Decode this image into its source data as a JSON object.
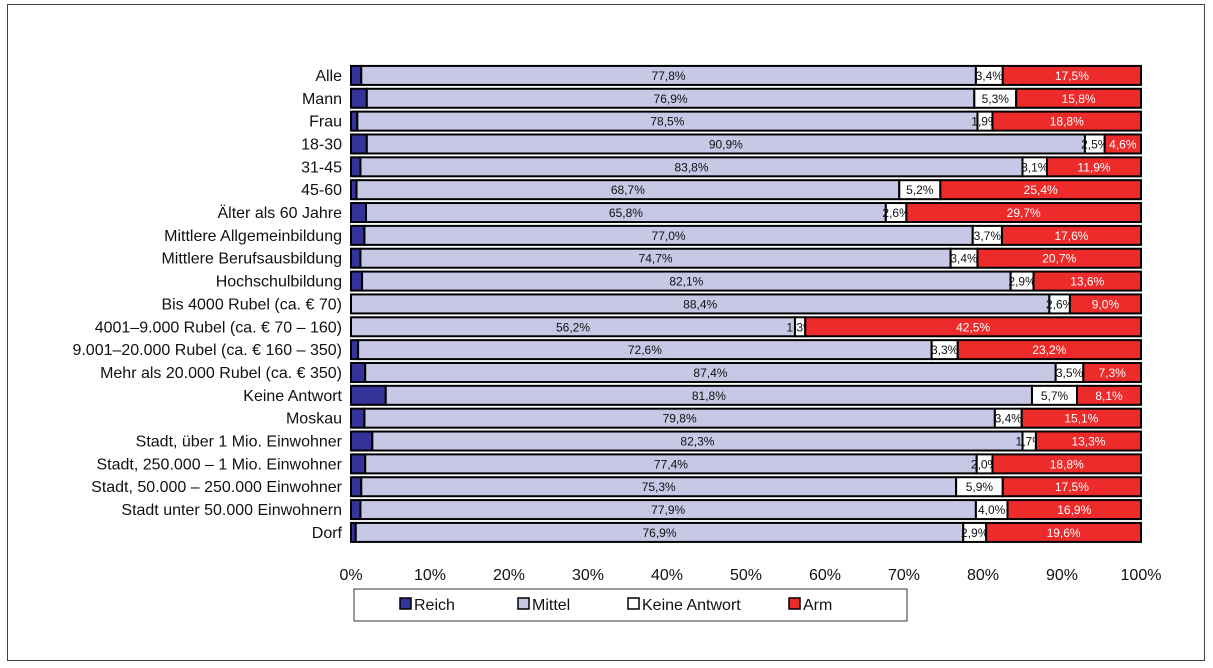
{
  "chart_data": {
    "type": "bar",
    "orientation": "horizontal",
    "stacked": true,
    "percent": true,
    "xlim": [
      0,
      100
    ],
    "x_ticks": [
      "0%",
      "10%",
      "20%",
      "30%",
      "40%",
      "50%",
      "60%",
      "70%",
      "80%",
      "90%",
      "100%"
    ],
    "grid": false,
    "legend_position": "bottom",
    "categories": [
      "Alle",
      "Mann",
      "Frau",
      "18-30",
      "31-45",
      "45-60",
      "Älter als 60 Jahre",
      "Mittlere Allgemeinbildung",
      "Mittlere Berufsausbildung",
      "Hochschulbildung",
      "Bis 4000 Rubel (ca. € 70)",
      "4001–9.000 Rubel (ca. € 70 – 160)",
      "9.001–20.000 Rubel (ca. € 160 – 350)",
      "Mehr als 20.000 Rubel (ca. € 350)",
      "Keine Antwort",
      "Moskau",
      "Stadt, über 1 Mio. Einwohner",
      "Stadt, 250.000 – 1 Mio. Einwohner",
      "Stadt, 50.000 – 250.000 Einwohner",
      "Stadt unter 50.000 Einwohnern",
      "Dorf"
    ],
    "series": [
      {
        "name": "Reich",
        "color": "#333399",
        "label_color": "#111111",
        "values": [
          1.3,
          2.0,
          0.8,
          2.0,
          1.2,
          0.7,
          1.9,
          1.7,
          1.2,
          1.4,
          0.0,
          0.0,
          0.9,
          1.8,
          4.4,
          1.7,
          2.7,
          1.8,
          1.3,
          1.2,
          0.6
        ],
        "labels": [
          "",
          "",
          "",
          "",
          "",
          "",
          "",
          "",
          "",
          "",
          "",
          "",
          "",
          "",
          "",
          "",
          "",
          "",
          "",
          "",
          ""
        ]
      },
      {
        "name": "Mittel",
        "color": "#c7c7e6",
        "label_color": "#111111",
        "values": [
          77.8,
          76.9,
          78.5,
          90.9,
          83.8,
          68.7,
          65.8,
          77.0,
          74.7,
          82.1,
          88.4,
          56.2,
          72.6,
          87.4,
          81.8,
          79.8,
          82.3,
          77.4,
          75.3,
          77.9,
          76.9
        ],
        "labels": [
          "77,8%",
          "76,9%",
          "78,5%",
          "90,9%",
          "83,8%",
          "68,7%",
          "65,8%",
          "77,0%",
          "74,7%",
          "82,1%",
          "88,4%",
          "56,2%",
          "72,6%",
          "87,4%",
          "81,8%",
          "79,8%",
          "82,3%",
          "77,4%",
          "75,3%",
          "77,9%",
          "76,9%"
        ]
      },
      {
        "name": "Keine Antwort",
        "color": "#ffffff",
        "label_color": "#111111",
        "values": [
          3.4,
          5.3,
          1.9,
          2.5,
          3.1,
          5.2,
          2.6,
          3.7,
          3.4,
          2.9,
          2.6,
          1.3,
          3.3,
          3.5,
          5.7,
          3.4,
          1.7,
          2.0,
          5.9,
          4.0,
          2.9
        ],
        "labels": [
          "3,4%",
          "5,3%",
          "1,9%",
          "2,5%",
          "3,1%",
          "5,2%",
          "2,6%",
          "3,7%",
          "3,4%",
          "2,9%",
          "2,6%",
          "1,3%",
          "3,3%",
          "3,5%",
          "5,7%",
          "3,4%",
          "1,7%",
          "2,0%",
          "5,9%",
          "4,0%",
          "2,9%"
        ]
      },
      {
        "name": "Arm",
        "color": "#ee2b2b",
        "label_color": "#ffffff",
        "values": [
          17.5,
          15.8,
          18.8,
          4.6,
          11.9,
          25.4,
          29.7,
          17.6,
          20.7,
          13.6,
          9.0,
          42.5,
          23.2,
          7.3,
          8.1,
          15.1,
          13.3,
          18.8,
          17.5,
          16.9,
          19.6
        ],
        "labels": [
          "17,5%",
          "15,8%",
          "18,8%",
          "4,6%",
          "11,9%",
          "25,4%",
          "29,7%",
          "17,6%",
          "20,7%",
          "13,6%",
          "9,0%",
          "42,5%",
          "23,2%",
          "7,3%",
          "8,1%",
          "15,1%",
          "13,3%",
          "18,8%",
          "17,5%",
          "16,9%",
          "19,6%"
        ]
      }
    ]
  }
}
